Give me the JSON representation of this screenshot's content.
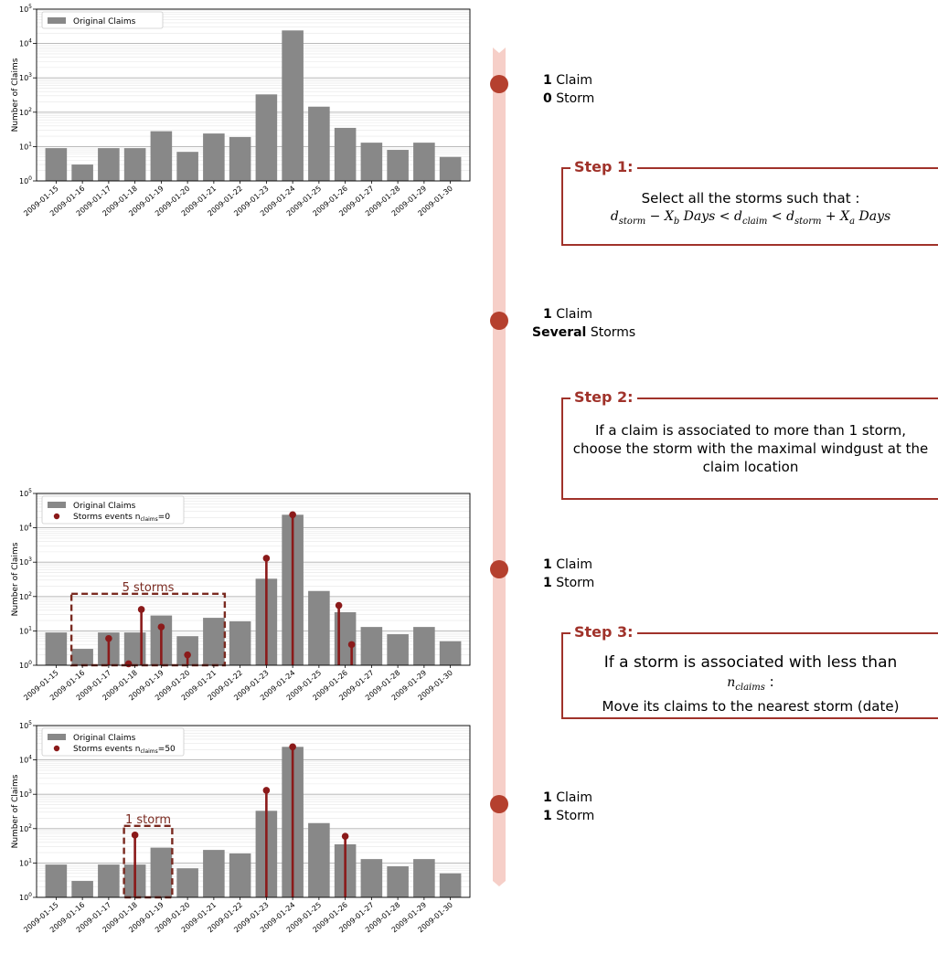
{
  "charts": [
    {
      "title": "",
      "ylabel": "Number of Claims",
      "legend": [
        "Original Claims"
      ]
    },
    {
      "title": "",
      "ylabel": "Number of Claims",
      "legend": [
        "Original Claims",
        "Storms events n",
        "claims",
        "=0"
      ],
      "box_label": "5 storms"
    },
    {
      "title": "",
      "ylabel": "Number of Claims",
      "legend": [
        "Original Claims",
        "Storms events n",
        "claims",
        "=50"
      ],
      "box_label": "1 storm"
    }
  ],
  "chart_data": [
    {
      "type": "bar",
      "categories": [
        "2009-01-15",
        "2009-01-16",
        "2009-01-17",
        "2009-01-18",
        "2009-01-19",
        "2009-01-20",
        "2009-01-21",
        "2009-01-22",
        "2009-01-23",
        "2009-01-24",
        "2009-01-25",
        "2009-01-26",
        "2009-01-27",
        "2009-01-28",
        "2009-01-29",
        "2009-01-30"
      ],
      "series": [
        {
          "name": "Original Claims",
          "values": [
            9,
            3,
            9,
            9,
            28,
            7,
            24,
            19,
            330,
            24000,
            145,
            35,
            13,
            8,
            13,
            5
          ]
        }
      ],
      "ylabel": "Number of Claims",
      "yscale": "log",
      "ylim": [
        1,
        100000
      ],
      "yticks": [
        "10^0",
        "10^1",
        "10^2",
        "10^3",
        "10^4",
        "10^5"
      ],
      "legend_position": "top-left",
      "grid": true
    },
    {
      "type": "bar",
      "categories": [
        "2009-01-15",
        "2009-01-16",
        "2009-01-17",
        "2009-01-18",
        "2009-01-19",
        "2009-01-20",
        "2009-01-21",
        "2009-01-22",
        "2009-01-23",
        "2009-01-24",
        "2009-01-25",
        "2009-01-26",
        "2009-01-27",
        "2009-01-28",
        "2009-01-29",
        "2009-01-30"
      ],
      "series": [
        {
          "name": "Original Claims",
          "values": [
            9,
            3,
            9,
            9,
            28,
            7,
            24,
            19,
            330,
            24000,
            145,
            35,
            13,
            8,
            13,
            5
          ]
        },
        {
          "name": "Storms events n_claims=0",
          "kind": "stem",
          "points": [
            {
              "x": "2009-01-17",
              "y": 6
            },
            {
              "x": "2009-01-18",
              "y": 1.1
            },
            {
              "x": "2009-01-18",
              "y": 42
            },
            {
              "x": "2009-01-19",
              "y": 13
            },
            {
              "x": "2009-01-20",
              "y": 2
            },
            {
              "x": "2009-01-23",
              "y": 1300
            },
            {
              "x": "2009-01-24",
              "y": 24000
            },
            {
              "x": "2009-01-26",
              "y": 55
            },
            {
              "x": "2009-01-26",
              "y": 4
            }
          ]
        }
      ],
      "annotation": {
        "label": "5 storms",
        "from": "2009-01-16",
        "to": "2009-01-21"
      },
      "ylabel": "Number of Claims",
      "yscale": "log",
      "ylim": [
        1,
        100000
      ],
      "yticks": [
        "10^0",
        "10^1",
        "10^2",
        "10^3",
        "10^4",
        "10^5"
      ],
      "legend_position": "top-left",
      "grid": true
    },
    {
      "type": "bar",
      "categories": [
        "2009-01-15",
        "2009-01-16",
        "2009-01-17",
        "2009-01-18",
        "2009-01-19",
        "2009-01-20",
        "2009-01-21",
        "2009-01-22",
        "2009-01-23",
        "2009-01-24",
        "2009-01-25",
        "2009-01-26",
        "2009-01-27",
        "2009-01-28",
        "2009-01-29",
        "2009-01-30"
      ],
      "series": [
        {
          "name": "Original Claims",
          "values": [
            9,
            3,
            9,
            9,
            28,
            7,
            24,
            19,
            330,
            24000,
            145,
            35,
            13,
            8,
            13,
            5
          ]
        },
        {
          "name": "Storms events n_claims=50",
          "kind": "stem",
          "points": [
            {
              "x": "2009-01-18",
              "y": 65
            },
            {
              "x": "2009-01-23",
              "y": 1300
            },
            {
              "x": "2009-01-24",
              "y": 24000
            },
            {
              "x": "2009-01-26",
              "y": 60
            }
          ]
        }
      ],
      "annotation": {
        "label": "1 storm",
        "from": "2009-01-18",
        "to": "2009-01-19"
      },
      "ylabel": "Number of Claims",
      "yscale": "log",
      "ylim": [
        1,
        100000
      ],
      "yticks": [
        "10^0",
        "10^1",
        "10^2",
        "10^3",
        "10^4",
        "10^5"
      ],
      "legend_position": "top-left",
      "grid": true
    }
  ],
  "stages": [
    {
      "count": "1",
      "count_word": "Claim",
      "storms_bold": "0",
      "storms_word": "Storm"
    },
    {
      "count": "1",
      "count_word": "Claim",
      "storms_bold": "Several",
      "storms_word": "Storms"
    },
    {
      "count": "1",
      "count_word": "Claim",
      "storms_bold": "1",
      "storms_word": "Storm"
    },
    {
      "count": "1",
      "count_word": "Claim",
      "storms_bold": "1",
      "storms_word": "Storm"
    }
  ],
  "steps": [
    {
      "title": "Step 1:",
      "line1": "Select all the storms such that :"
    },
    {
      "title": "Step 2:",
      "text": "If a claim is associated to more than 1 storm, choose the storm with the maximal windgust at the claim location"
    },
    {
      "title": "Step 3:",
      "line1": "If a storm is associated with less than",
      "line2": ":",
      "line3": "Move its claims to the nearest storm (date)"
    }
  ],
  "math": {
    "d": "d",
    "storm": "storm",
    "claim": "claim",
    "minus": " − ",
    "plus": " + ",
    "lt": " < ",
    "X": "X",
    "b": "b",
    "a": "a",
    "days": " Days",
    "n": "n",
    "claims": "claims"
  },
  "colors": {
    "bar": "#888888",
    "storm": "#8b1a1a",
    "accent": "#a0322a",
    "timeline": "#f6cfc8",
    "dot": "#b5402e"
  }
}
